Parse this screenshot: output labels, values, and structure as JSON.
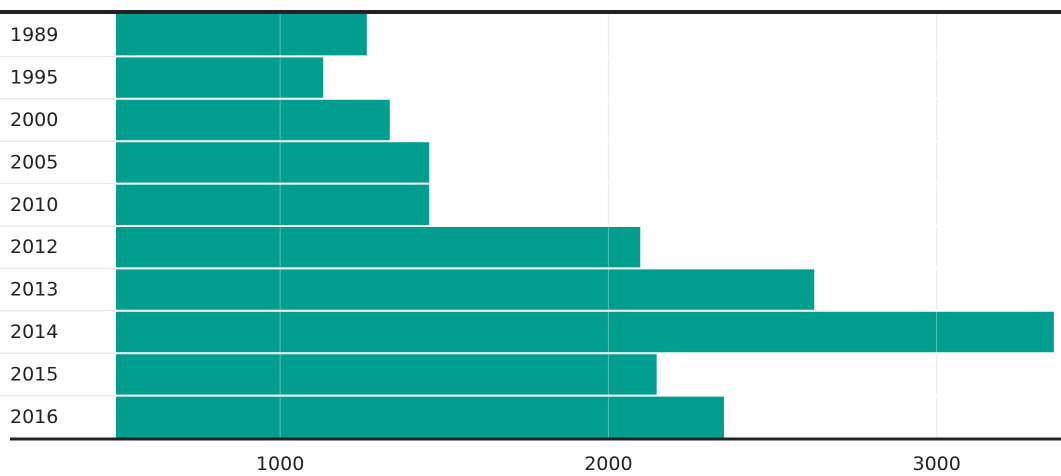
{
  "chart_data": {
    "type": "bar",
    "orientation": "horizontal",
    "categories": [
      "1989",
      "1995",
      "2000",
      "2005",
      "2010",
      "2012",
      "2013",
      "2014",
      "2015",
      "2016"
    ],
    "series": [
      {
        "values": [
          1264,
          1131,
          1334,
          1454,
          1454,
          2097,
          2627,
          3357,
          2147,
          2352
        ]
      }
    ],
    "xlim": [
      500,
      3400
    ],
    "xticks": [
      1000,
      2000,
      3000
    ],
    "xtick_labels": [
      "1000",
      "2000",
      "3000"
    ],
    "grid": true,
    "legend": "none",
    "colors": {
      "bar": "#009e8e",
      "grid": "#dddddd",
      "axis": "#222222",
      "row_separator": "#ffffff"
    }
  }
}
